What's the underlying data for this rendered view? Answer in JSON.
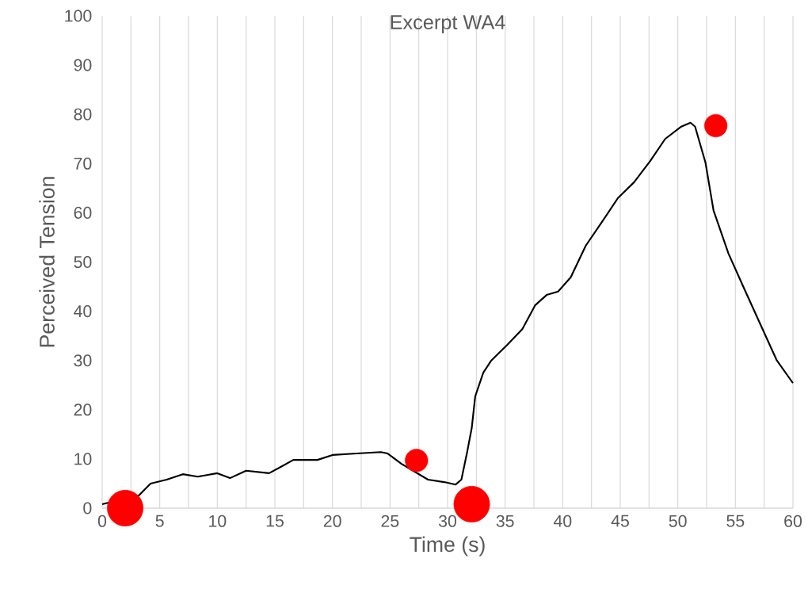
{
  "chart_data": {
    "type": "line",
    "title": "Excerpt WA4",
    "xlabel": "Time (s)",
    "ylabel": "Perceived Tension",
    "xlim": [
      0,
      60
    ],
    "ylim": [
      0,
      100
    ],
    "xticks": [
      0,
      {
        "value": 2.5,
        "label": null
      },
      5,
      {
        "value": 7.5,
        "label": null
      },
      10,
      {
        "value": 12.5,
        "label": null
      },
      15,
      {
        "value": 17.5,
        "label": null
      },
      20,
      {
        "value": 22.5,
        "label": null
      },
      25,
      {
        "value": 27.5,
        "label": null
      },
      30,
      {
        "value": 32.5,
        "label": null
      },
      35,
      {
        "value": 37.5,
        "label": null
      },
      40,
      {
        "value": 42.5,
        "label": null
      },
      45,
      {
        "value": 47.5,
        "label": null
      },
      50,
      {
        "value": 52.5,
        "label": null
      },
      55,
      {
        "value": 57.5,
        "label": null
      },
      60
    ],
    "yticks": [
      0,
      10,
      20,
      30,
      40,
      50,
      60,
      70,
      80,
      90,
      100
    ],
    "grid": "x",
    "series": [
      {
        "color": "#000000",
        "marker": "none",
        "x": [
          0,
          3.2,
          4.2,
          5.6,
          7,
          8.3,
          10,
          11.1,
          12.5,
          14.5,
          15.6,
          16.6,
          18.7,
          20,
          22.1,
          24.2,
          24.8,
          26,
          28.3,
          29.7,
          30.7,
          31.2,
          31.7,
          32.1,
          32.4,
          33.1,
          33.8,
          35.2,
          36.5,
          37.6,
          38.6,
          39.6,
          40.7,
          42,
          43.4,
          44.8,
          46.2,
          47.6,
          48.9,
          50.3,
          51.1,
          51.5,
          52.4,
          53.1,
          54.4,
          55.8,
          57.2,
          58.6,
          60
        ],
        "values": [
          0.8,
          2.6,
          5,
          5.8,
          6.9,
          6.4,
          7.1,
          6.1,
          7.6,
          7.1,
          8.5,
          9.8,
          9.8,
          10.8,
          11.1,
          11.4,
          11.1,
          9,
          5.8,
          5.3,
          4.8,
          5.8,
          11.4,
          16.3,
          22.7,
          27.5,
          30,
          33.2,
          36.4,
          41.2,
          43.3,
          44,
          46.9,
          53.3,
          58.1,
          63,
          66.2,
          70.5,
          75,
          77.5,
          78.3,
          77.5,
          70.2,
          60.5,
          51.7,
          44.4,
          37.2,
          30,
          25.4
        ]
      },
      {
        "type": "bubble",
        "color": "#ff0000",
        "x": [
          2,
          27.3,
          32.1,
          53.3
        ],
        "values": [
          0,
          9.7,
          0.8,
          77.7
        ],
        "sizes": [
          1,
          0.4,
          1,
          0.4
        ]
      }
    ]
  }
}
